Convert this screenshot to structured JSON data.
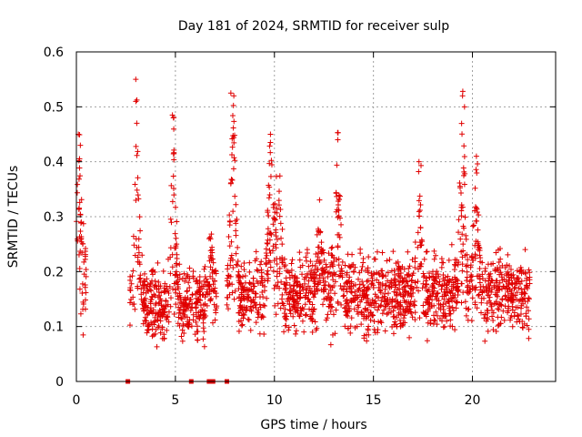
{
  "chart_data": {
    "type": "scatter",
    "title": "Day 181 of 2024, SRMTID for receiver sulp",
    "xlabel": "GPS time / hours",
    "ylabel": "SRMTID / TECUs",
    "xlim": [
      0,
      24.2
    ],
    "ylim": [
      0,
      0.6
    ],
    "x_ticks": [
      0,
      5,
      10,
      15,
      20
    ],
    "x_tick_labels": [
      "0",
      "5",
      "10",
      "15",
      "20"
    ],
    "y_ticks": [
      0,
      0.1,
      0.2,
      0.3,
      0.4,
      0.5,
      0.6
    ],
    "y_tick_labels": [
      "0",
      "0.1",
      "0.2",
      "0.3",
      "0.4",
      "0.5",
      "0.6"
    ],
    "grid": true,
    "marker": "plus",
    "color": "#e00000",
    "series": [
      {
        "name": "SRMTID",
        "segments": [
          {
            "start": 0.0,
            "end": 0.5,
            "base": 0.19,
            "spread": 0.14,
            "peaks": [
              [
                0.1,
                0.45
              ]
            ]
          },
          {
            "start": 2.7,
            "end": 7.1,
            "base": 0.14,
            "spread": 0.09,
            "peaks": [
              [
                3.0,
                0.55
              ],
              [
                4.9,
                0.48
              ],
              [
                6.8,
                0.27
              ]
            ]
          },
          {
            "start": 7.6,
            "end": 22.9,
            "base": 0.16,
            "spread": 0.1,
            "peaks": [
              [
                7.9,
                0.52
              ],
              [
                9.8,
                0.45
              ],
              [
                10.2,
                0.42
              ],
              [
                12.3,
                0.32
              ],
              [
                13.2,
                0.44
              ],
              [
                17.3,
                0.4
              ],
              [
                19.5,
                0.52
              ],
              [
                20.2,
                0.41
              ]
            ]
          }
        ]
      }
    ],
    "zero_markers": [
      2.6,
      5.8,
      6.7,
      6.9,
      7.6
    ],
    "peak_points": [
      {
        "x": 0.1,
        "y": 0.45
      },
      {
        "x": 0.2,
        "y": 0.43
      },
      {
        "x": 3.0,
        "y": 0.55
      },
      {
        "x": 3.05,
        "y": 0.47
      },
      {
        "x": 4.9,
        "y": 0.48
      },
      {
        "x": 4.85,
        "y": 0.485
      },
      {
        "x": 7.8,
        "y": 0.525
      },
      {
        "x": 7.95,
        "y": 0.52
      },
      {
        "x": 9.8,
        "y": 0.45
      },
      {
        "x": 13.2,
        "y": 0.44
      },
      {
        "x": 17.3,
        "y": 0.4
      },
      {
        "x": 19.5,
        "y": 0.52
      },
      {
        "x": 19.6,
        "y": 0.5
      },
      {
        "x": 20.2,
        "y": 0.41
      }
    ]
  }
}
